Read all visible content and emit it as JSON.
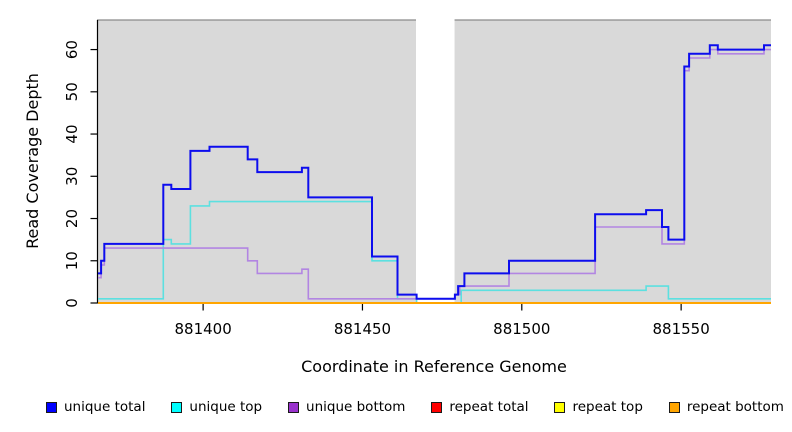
{
  "chart_data": {
    "type": "line",
    "subtype": "step-coverage",
    "title": "",
    "xlabel": "Coordinate in Reference Genome",
    "ylabel": "Read Coverage Depth",
    "xlim": [
      881366.7,
      881578.2
    ],
    "ylim": [
      0,
      67
    ],
    "grid": "off",
    "panel_background": "#d9d9d9",
    "masked_region": {
      "x_start": 881466.8,
      "x_end": 881478.9,
      "color": "#ffffff"
    },
    "x_ticks": [
      881400,
      881450,
      881500,
      881550
    ],
    "x_tick_labels": [
      "881400",
      "881450",
      "881500",
      "881550"
    ],
    "y_ticks": [
      0,
      10,
      20,
      30,
      40,
      50,
      60
    ],
    "y_tick_labels": [
      "0",
      "10",
      "20",
      "30",
      "40",
      "50",
      "60"
    ],
    "legend_position": "bottom",
    "series": [
      {
        "name": "unique top",
        "color": "#5ce0e0",
        "width": 1.6,
        "points": [
          [
            881367,
            1
          ],
          [
            881387.5,
            15
          ],
          [
            881390,
            14
          ],
          [
            881396,
            23
          ],
          [
            881402,
            24
          ],
          [
            881453,
            10
          ],
          [
            881461,
            1
          ],
          [
            881467,
            0
          ],
          [
            881481,
            3
          ],
          [
            881539,
            4
          ],
          [
            881546,
            1
          ]
        ]
      },
      {
        "name": "unique bottom",
        "color": "#b285e2",
        "width": 1.6,
        "points": [
          [
            881367,
            6
          ],
          [
            881368,
            9
          ],
          [
            881369,
            13
          ],
          [
            881414,
            10
          ],
          [
            881417,
            7
          ],
          [
            881431,
            8
          ],
          [
            881433,
            1
          ],
          [
            881479,
            2
          ],
          [
            881480.5,
            4
          ],
          [
            881496,
            7
          ],
          [
            881523,
            18
          ],
          [
            881544,
            14
          ],
          [
            881551,
            55
          ],
          [
            881552.5,
            58
          ],
          [
            881559,
            60
          ],
          [
            881561.5,
            59
          ],
          [
            881576,
            60
          ]
        ]
      },
      {
        "name": "unique total",
        "color": "#0d0dee",
        "width": 2,
        "points": [
          [
            881367,
            7
          ],
          [
            881368,
            10
          ],
          [
            881369,
            14
          ],
          [
            881387.5,
            28
          ],
          [
            881390,
            27
          ],
          [
            881396,
            36
          ],
          [
            881402,
            37
          ],
          [
            881414,
            34
          ],
          [
            881417,
            31
          ],
          [
            881431,
            32
          ],
          [
            881433,
            25
          ],
          [
            881453,
            11
          ],
          [
            881461,
            2
          ],
          [
            881467,
            1
          ],
          [
            881479,
            2
          ],
          [
            881480,
            4
          ],
          [
            881482,
            7
          ],
          [
            881496,
            10
          ],
          [
            881523,
            21
          ],
          [
            881539,
            22
          ],
          [
            881544,
            18
          ],
          [
            881546,
            15
          ],
          [
            881551,
            56
          ],
          [
            881552.5,
            59
          ],
          [
            881559,
            61
          ],
          [
            881561.5,
            60
          ],
          [
            881576,
            61
          ]
        ]
      },
      {
        "name": "repeat total",
        "color": "#e60000",
        "width": 1.5,
        "points": [
          [
            881367,
            0
          ]
        ]
      },
      {
        "name": "repeat top",
        "color": "#ffff00",
        "width": 1.5,
        "points": [
          [
            881367,
            0
          ]
        ]
      },
      {
        "name": "repeat bottom",
        "color": "#ffa500",
        "width": 2,
        "points": [
          [
            881367,
            0
          ]
        ]
      }
    ]
  },
  "legend": {
    "items": [
      {
        "label": "unique total",
        "color": "#0000ff"
      },
      {
        "label": "unique top",
        "color": "#00ffff"
      },
      {
        "label": "unique bottom",
        "color": "#9932cc"
      },
      {
        "label": "repeat total",
        "color": "#ff0000"
      },
      {
        "label": "repeat top",
        "color": "#ffff00"
      },
      {
        "label": "repeat bottom",
        "color": "#ffa500"
      }
    ]
  }
}
